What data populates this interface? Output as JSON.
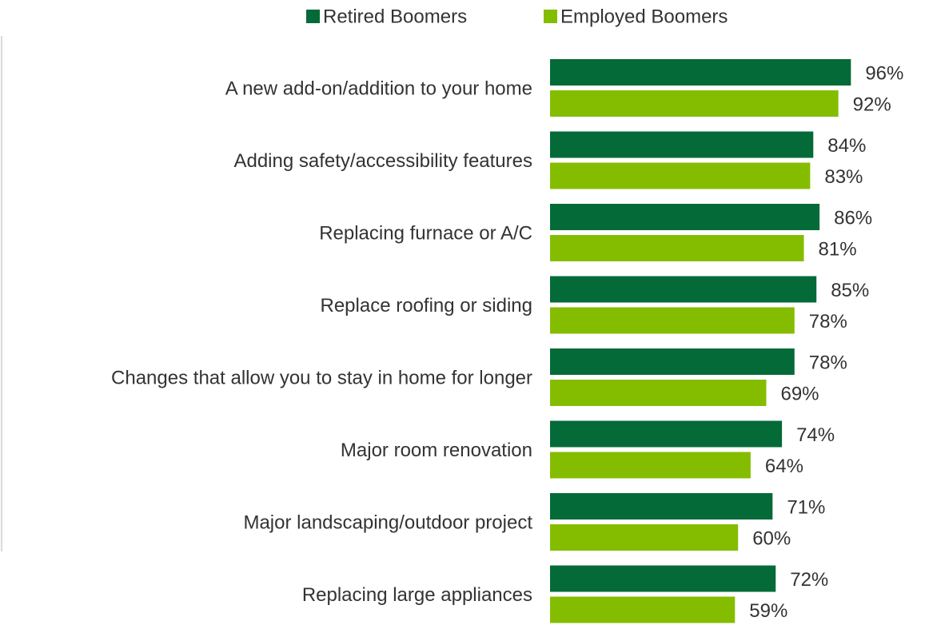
{
  "chart_data": {
    "type": "bar",
    "orientation": "horizontal",
    "categories": [
      "A new add-on/addition to your home",
      "Adding safety/accessibility features",
      "Replacing furnace or A/C",
      "Replace roofing or siding",
      "Changes that allow you to stay in home for longer",
      "Major room renovation",
      "Major landscaping/outdoor project",
      "Replacing large appliances"
    ],
    "series": [
      {
        "name": "Retired Boomers",
        "color": "#046a38",
        "values": [
          96,
          84,
          86,
          85,
          78,
          74,
          71,
          72
        ],
        "value_labels": [
          "96%",
          "84%",
          "86%",
          "85%",
          "78%",
          "74%",
          "71%",
          "72%"
        ]
      },
      {
        "name": "Employed Boomers",
        "color": "#84bd00",
        "values": [
          92,
          83,
          81,
          78,
          69,
          64,
          60,
          59
        ],
        "value_labels": [
          "92%",
          "83%",
          "81%",
          "78%",
          "69%",
          "64%",
          "60%",
          "59%"
        ]
      }
    ],
    "xlim": [
      0,
      100
    ],
    "legend": "top"
  }
}
